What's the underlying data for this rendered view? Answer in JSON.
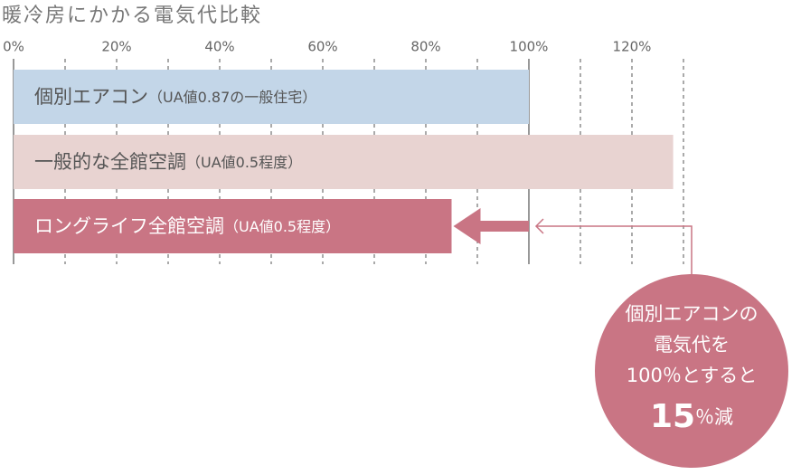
{
  "chart_data": {
    "type": "bar",
    "orientation": "horizontal",
    "title": "暖冷房にかかる電気代比較",
    "categories": [
      "個別エアコン",
      "一般的な全館空調",
      "ロングライフ全館空調"
    ],
    "category_notes": [
      "（UA値0.87の一般住宅）",
      "（UA値0.5程度）",
      "（UA値0.5程度）"
    ],
    "values": [
      100,
      128,
      85
    ],
    "colors": [
      "#c3d6e8",
      "#e8d3d1",
      "#c97584"
    ],
    "label_colors": [
      "#555555",
      "#555555",
      "#ffffff"
    ],
    "xlim": [
      0,
      130
    ],
    "xticks": [
      {
        "value": 0,
        "label": "0%"
      },
      {
        "value": 20,
        "label": "20%"
      },
      {
        "value": 40,
        "label": "40%"
      },
      {
        "value": 60,
        "label": "60%"
      },
      {
        "value": 80,
        "label": "80%"
      },
      {
        "value": 100,
        "label": "100%"
      },
      {
        "value": 120,
        "label": "120%"
      }
    ],
    "minor_xticks": [
      10,
      30,
      50,
      70,
      90,
      110,
      130
    ],
    "reference_line": 100,
    "grid": true,
    "annotation": {
      "lines": [
        "個別エアコンの",
        "電気代を",
        "100％とすると"
      ],
      "big": "15",
      "suffix": "％減",
      "color": "#c97584"
    }
  }
}
